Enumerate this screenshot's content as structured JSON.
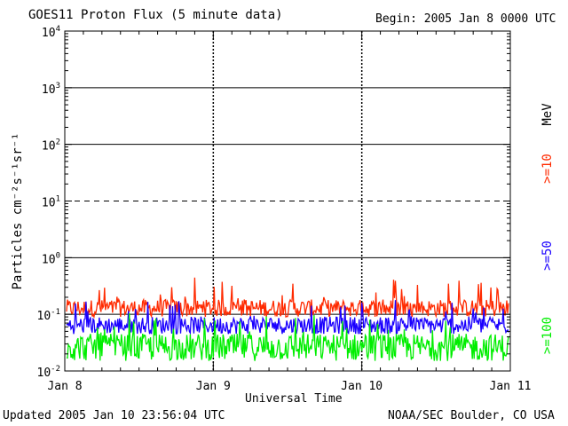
{
  "header": {
    "title": "GOES11 Proton Flux (5 minute data)",
    "begin": "Begin: 2005 Jan 8 0000 UTC"
  },
  "footer": {
    "updated": "Updated 2005 Jan 10 23:56:04 UTC",
    "credit": "NOAA/SEC Boulder, CO USA"
  },
  "chart_data": {
    "type": "line",
    "title": "GOES11 Proton Flux (5 minute data)",
    "xlabel": "Universal Time",
    "ylabel": "Particles cm⁻²s⁻¹sr⁻¹",
    "y_scale": "log",
    "ylim": [
      0.01,
      10000
    ],
    "y_ticks": [
      {
        "value": 0.01,
        "base": "10",
        "exp": "-2"
      },
      {
        "value": 0.1,
        "base": "10",
        "exp": "-1"
      },
      {
        "value": 1,
        "base": "10",
        "exp": "0"
      },
      {
        "value": 10,
        "base": "10",
        "exp": "1"
      },
      {
        "value": 100,
        "base": "10",
        "exp": "2"
      },
      {
        "value": 1000,
        "base": "10",
        "exp": "3"
      },
      {
        "value": 10000,
        "base": "10",
        "exp": "4"
      }
    ],
    "x_ticks": [
      "Jan 8",
      "Jan 9",
      "Jan 10",
      "Jan 11"
    ],
    "xlim": [
      "2005-01-08",
      "2005-01-11"
    ],
    "legend_units": "MeV",
    "series": [
      {
        "name": ">=10",
        "color": "#ff2a00",
        "median": 0.14,
        "low": 0.09,
        "high": 0.45
      },
      {
        "name": ">=50",
        "color": "#1a00ff",
        "median": 0.07,
        "low": 0.045,
        "high": 0.18
      },
      {
        "name": ">=100",
        "color": "#00ee00",
        "median": 0.03,
        "low": 0.015,
        "high": 0.11
      }
    ],
    "grid": "solid at 10^-1, 10^0, 10^2, 10^3; dashed at 10^1; day separators dashed"
  }
}
